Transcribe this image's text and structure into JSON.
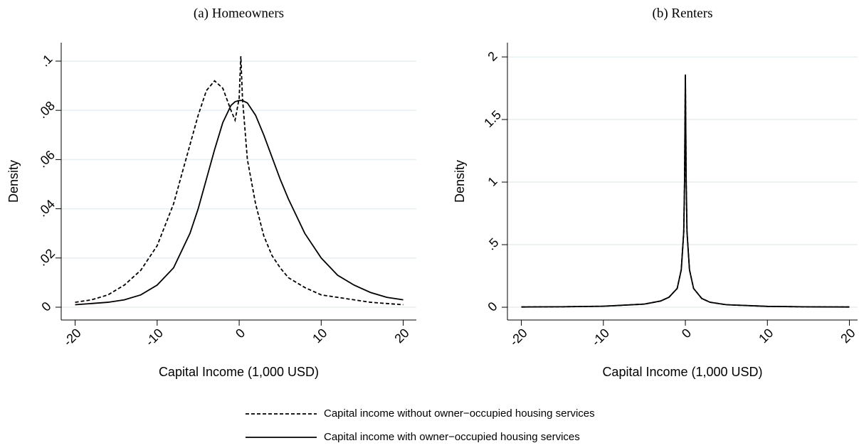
{
  "chart_data": [
    {
      "type": "line",
      "title": "(a) Homeowners",
      "xlabel": "Capital Income (1,000 USD)",
      "ylabel": "Density",
      "xlim": [
        -21.7,
        21.6
      ],
      "xticks": [
        -20,
        -10,
        0,
        10,
        20
      ],
      "ylim": [
        -0.0052,
        0.1075
      ],
      "yticks": [
        0,
        {
          "value": 0.02,
          "label": ".02"
        },
        {
          "value": 0.04,
          "label": ".04"
        },
        {
          "value": 0.06,
          "label": ".06"
        },
        {
          "value": 0.08,
          "label": ".08"
        },
        {
          "value": 0.1,
          "label": ".1"
        }
      ],
      "grid": true,
      "series": [
        {
          "name": "Capital income without owner−occupied housing services",
          "color": "#000000",
          "dash": true,
          "x": [
            -20,
            -18,
            -16,
            -14,
            -12,
            -10,
            -8,
            -6,
            -5,
            -4,
            -3,
            -2,
            -1,
            -0.5,
            0,
            0.2,
            0.4,
            1,
            2,
            3,
            4,
            5,
            6,
            8,
            10,
            12,
            14,
            16,
            18,
            20
          ],
          "values": [
            0.002,
            0.003,
            0.005,
            0.009,
            0.015,
            0.025,
            0.042,
            0.066,
            0.078,
            0.088,
            0.092,
            0.089,
            0.08,
            0.076,
            0.085,
            0.102,
            0.085,
            0.06,
            0.042,
            0.029,
            0.021,
            0.016,
            0.012,
            0.008,
            0.005,
            0.004,
            0.003,
            0.002,
            0.0015,
            0.001
          ]
        },
        {
          "name": "Capital income with owner−occupied housing services",
          "color": "#000000",
          "dash": false,
          "x": [
            -20,
            -18,
            -16,
            -14,
            -12,
            -10,
            -8,
            -6,
            -5,
            -4,
            -3,
            -2,
            -1,
            -0.5,
            0,
            0.2,
            0.4,
            1,
            2,
            3,
            4,
            5,
            6,
            8,
            10,
            12,
            14,
            16,
            18,
            20
          ],
          "values": [
            0.001,
            0.0015,
            0.002,
            0.003,
            0.005,
            0.009,
            0.016,
            0.03,
            0.04,
            0.052,
            0.064,
            0.075,
            0.082,
            0.0835,
            0.084,
            0.084,
            0.084,
            0.083,
            0.078,
            0.07,
            0.061,
            0.052,
            0.044,
            0.03,
            0.02,
            0.013,
            0.009,
            0.006,
            0.004,
            0.003
          ]
        }
      ]
    },
    {
      "type": "line",
      "title": "(b) Renters",
      "xlabel": "Capital Income (1,000 USD)",
      "ylabel": "Density",
      "xlim": [
        -21.7,
        21
      ],
      "xticks": [
        -20,
        -10,
        0,
        10,
        20
      ],
      "ylim": [
        -0.102,
        2.114
      ],
      "yticks": [
        0,
        {
          "value": 0.5,
          "label": ".5"
        },
        1,
        1.5,
        2
      ],
      "grid": true,
      "series": [
        {
          "color": "#000000",
          "dash": true,
          "x": [
            -20,
            -15,
            -10,
            -5,
            -3,
            -2,
            -1,
            -0.5,
            -0.2,
            -0.1,
            0,
            0.1,
            0.2,
            0.5,
            1,
            2,
            3,
            5,
            10,
            15,
            20
          ],
          "values": [
            0.002,
            0.004,
            0.008,
            0.025,
            0.05,
            0.08,
            0.15,
            0.3,
            0.6,
            1.0,
            1.85,
            1.0,
            0.6,
            0.3,
            0.15,
            0.07,
            0.04,
            0.02,
            0.007,
            0.003,
            0.002
          ]
        },
        {
          "color": "#000000",
          "dash": false,
          "x": [
            -20,
            -15,
            -10,
            -5,
            -3,
            -2,
            -1,
            -0.5,
            -0.2,
            -0.1,
            0,
            0.1,
            0.2,
            0.5,
            1,
            2,
            3,
            5,
            10,
            15,
            20
          ],
          "values": [
            0.002,
            0.004,
            0.008,
            0.025,
            0.05,
            0.08,
            0.15,
            0.3,
            0.6,
            1.0,
            1.86,
            1.0,
            0.6,
            0.3,
            0.15,
            0.07,
            0.04,
            0.02,
            0.007,
            0.003,
            0.002
          ]
        }
      ]
    }
  ]
}
